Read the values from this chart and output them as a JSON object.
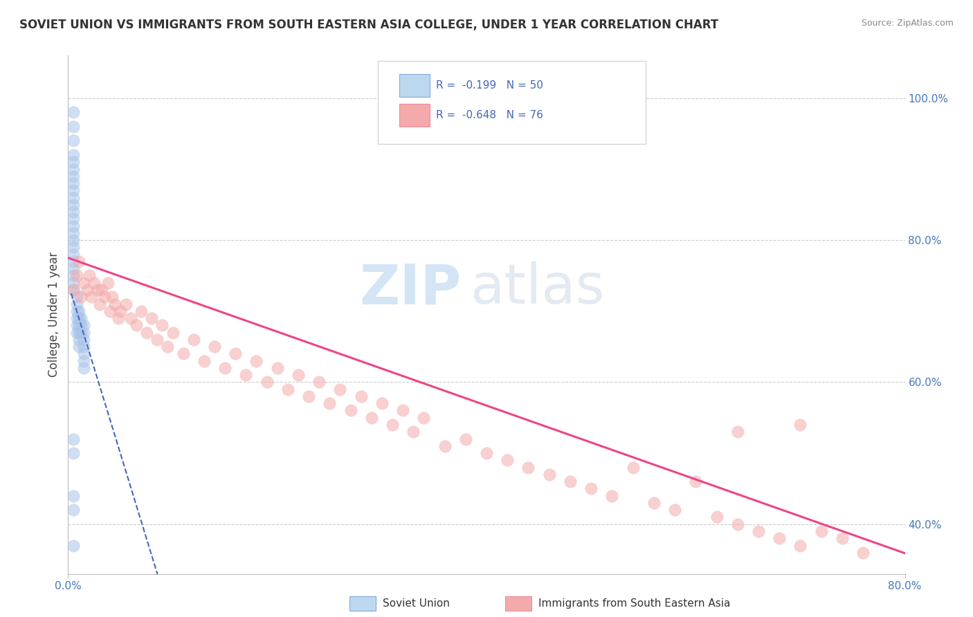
{
  "title": "SOVIET UNION VS IMMIGRANTS FROM SOUTH EASTERN ASIA COLLEGE, UNDER 1 YEAR CORRELATION CHART",
  "source": "Source: ZipAtlas.com",
  "ylabel": "College, Under 1 year",
  "right_yticks": [
    "40.0%",
    "60.0%",
    "80.0%",
    "100.0%"
  ],
  "right_ytick_vals": [
    0.4,
    0.6,
    0.8,
    1.0
  ],
  "xlim": [
    0.0,
    0.8
  ],
  "ylim": [
    0.33,
    1.06
  ],
  "blue_color": "#A8C4E8",
  "blue_edge_color": "#5588CC",
  "pink_color": "#F4AAAA",
  "pink_edge_color": "#DD6688",
  "blue_line_color": "#4466BB",
  "pink_line_color": "#EE4488",
  "legend_blue_fill": "#BDD7EE",
  "legend_pink_fill": "#F4AAAA",
  "legend_text_color": "#4466BB",
  "watermark_zip_color": "#AACCEE",
  "watermark_atlas_color": "#BBCCDD",
  "blue_scatter_x": [
    0.005,
    0.005,
    0.005,
    0.005,
    0.005,
    0.005,
    0.005,
    0.005,
    0.005,
    0.005,
    0.005,
    0.005,
    0.005,
    0.005,
    0.005,
    0.005,
    0.005,
    0.005,
    0.005,
    0.005,
    0.005,
    0.005,
    0.005,
    0.008,
    0.008,
    0.008,
    0.008,
    0.008,
    0.008,
    0.01,
    0.01,
    0.01,
    0.01,
    0.01,
    0.01,
    0.012,
    0.012,
    0.012,
    0.015,
    0.015,
    0.015,
    0.015,
    0.015,
    0.015,
    0.015,
    0.005,
    0.005,
    0.005,
    0.005,
    0.005
  ],
  "blue_scatter_y": [
    0.98,
    0.96,
    0.94,
    0.92,
    0.91,
    0.9,
    0.89,
    0.88,
    0.87,
    0.86,
    0.85,
    0.84,
    0.83,
    0.82,
    0.81,
    0.8,
    0.79,
    0.78,
    0.77,
    0.76,
    0.75,
    0.74,
    0.73,
    0.72,
    0.71,
    0.7,
    0.69,
    0.68,
    0.67,
    0.7,
    0.69,
    0.68,
    0.67,
    0.66,
    0.65,
    0.69,
    0.68,
    0.67,
    0.68,
    0.67,
    0.66,
    0.65,
    0.64,
    0.63,
    0.62,
    0.52,
    0.5,
    0.44,
    0.42,
    0.37
  ],
  "pink_scatter_x": [
    0.005,
    0.008,
    0.01,
    0.012,
    0.015,
    0.018,
    0.02,
    0.022,
    0.025,
    0.028,
    0.03,
    0.032,
    0.035,
    0.038,
    0.04,
    0.042,
    0.045,
    0.048,
    0.05,
    0.055,
    0.06,
    0.065,
    0.07,
    0.075,
    0.08,
    0.085,
    0.09,
    0.095,
    0.1,
    0.11,
    0.12,
    0.13,
    0.14,
    0.15,
    0.16,
    0.17,
    0.18,
    0.19,
    0.2,
    0.21,
    0.22,
    0.23,
    0.24,
    0.25,
    0.26,
    0.27,
    0.28,
    0.29,
    0.3,
    0.31,
    0.32,
    0.33,
    0.34,
    0.36,
    0.38,
    0.4,
    0.42,
    0.44,
    0.46,
    0.48,
    0.5,
    0.52,
    0.54,
    0.56,
    0.58,
    0.6,
    0.62,
    0.64,
    0.66,
    0.68,
    0.7,
    0.72,
    0.74,
    0.76,
    0.64,
    0.7
  ],
  "pink_scatter_y": [
    0.73,
    0.75,
    0.77,
    0.72,
    0.74,
    0.73,
    0.75,
    0.72,
    0.74,
    0.73,
    0.71,
    0.73,
    0.72,
    0.74,
    0.7,
    0.72,
    0.71,
    0.69,
    0.7,
    0.71,
    0.69,
    0.68,
    0.7,
    0.67,
    0.69,
    0.66,
    0.68,
    0.65,
    0.67,
    0.64,
    0.66,
    0.63,
    0.65,
    0.62,
    0.64,
    0.61,
    0.63,
    0.6,
    0.62,
    0.59,
    0.61,
    0.58,
    0.6,
    0.57,
    0.59,
    0.56,
    0.58,
    0.55,
    0.57,
    0.54,
    0.56,
    0.53,
    0.55,
    0.51,
    0.52,
    0.5,
    0.49,
    0.48,
    0.47,
    0.46,
    0.45,
    0.44,
    0.48,
    0.43,
    0.42,
    0.46,
    0.41,
    0.4,
    0.39,
    0.38,
    0.37,
    0.39,
    0.38,
    0.36,
    0.53,
    0.54
  ],
  "blue_trend_x": [
    0.003,
    0.12
  ],
  "blue_trend_y_start": 0.725,
  "blue_trend_slope": -4.8,
  "pink_trend_x": [
    0.0,
    0.8
  ],
  "pink_trend_y_start": 0.775,
  "pink_trend_slope": -0.52
}
